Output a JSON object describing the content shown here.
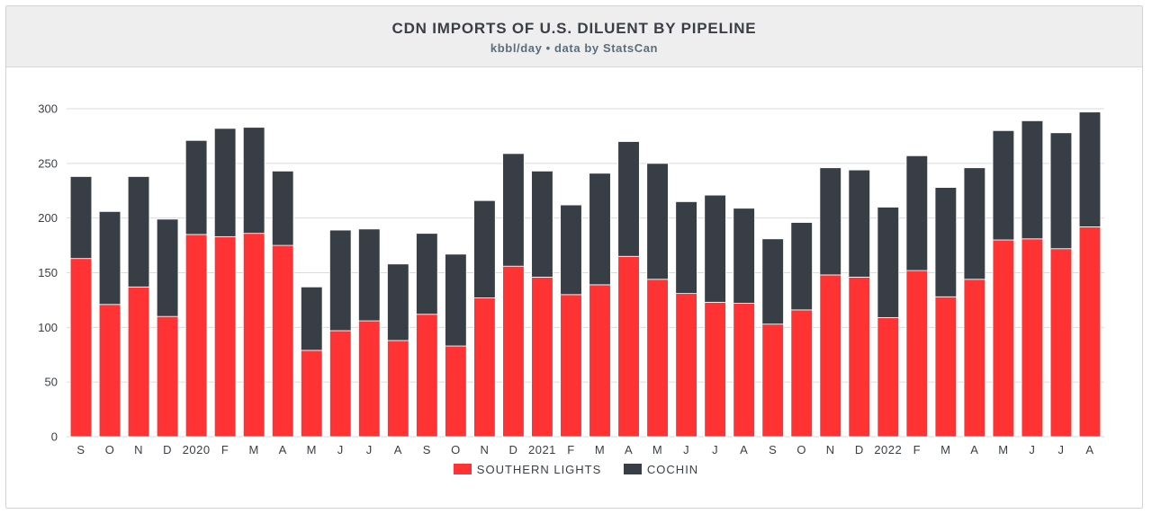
{
  "header": {
    "title": "CDN IMPORTS OF U.S. DILUENT BY PIPELINE",
    "subtitle": "kbbl/day • data by StatsCan"
  },
  "legend": {
    "items": [
      {
        "label": "SOUTHERN LIGHTS",
        "color": "#ff3333"
      },
      {
        "label": "COCHIN",
        "color": "#383e45"
      }
    ]
  },
  "chart_data": {
    "type": "bar",
    "stacked": true,
    "ylim": [
      0,
      300
    ],
    "yticks": [
      0,
      50,
      100,
      150,
      200,
      250,
      300
    ],
    "grid": true,
    "legend_position": "bottom",
    "categories": [
      "S",
      "O",
      "N",
      "D",
      "2020",
      "F",
      "M",
      "A",
      "M",
      "J",
      "J",
      "A",
      "S",
      "O",
      "N",
      "D",
      "2021",
      "F",
      "M",
      "A",
      "M",
      "J",
      "J",
      "A",
      "S",
      "O",
      "N",
      "D",
      "2022",
      "F",
      "M",
      "A",
      "M",
      "J",
      "J",
      "A"
    ],
    "series": [
      {
        "name": "SOUTHERN LIGHTS",
        "color": "#ff3333",
        "values": [
          163,
          121,
          137,
          110,
          185,
          183,
          186,
          175,
          79,
          97,
          106,
          88,
          112,
          83,
          127,
          156,
          146,
          130,
          139,
          165,
          144,
          131,
          123,
          122,
          103,
          116,
          148,
          146,
          109,
          152,
          128,
          144,
          180,
          181,
          172,
          192
        ]
      },
      {
        "name": "COCHIN",
        "color": "#383e45",
        "values": [
          75,
          85,
          101,
          89,
          86,
          99,
          97,
          68,
          58,
          92,
          84,
          70,
          74,
          84,
          89,
          103,
          97,
          82,
          102,
          105,
          106,
          84,
          98,
          87,
          78,
          80,
          98,
          98,
          101,
          105,
          100,
          102,
          100,
          108,
          106,
          105
        ]
      }
    ]
  }
}
